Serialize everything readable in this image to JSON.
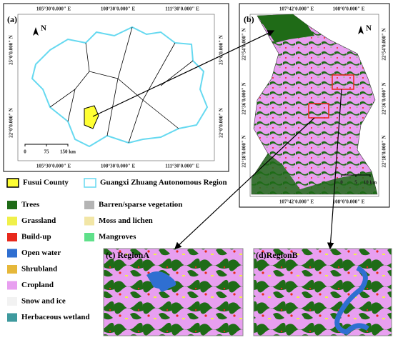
{
  "panel_a": {
    "label": "(a)",
    "north": "N",
    "top_ticks": [
      "105°30'0.000\" E",
      "108°30'0.000\" E",
      "111°30'0.000\" E"
    ],
    "bottom_ticks": [
      "105°30'0.000\" E",
      "108°30'0.000\" E",
      "111°30'0.000\" E"
    ],
    "left_ticks": [
      "25°0'0.000\" N",
      "22°0'0.000\" N"
    ],
    "right_ticks": [
      "25°0'0.000\" N",
      "22°0'0.000\" N"
    ],
    "scale": [
      "0",
      "75",
      "150 km"
    ]
  },
  "panel_b": {
    "label": "(b)",
    "north": "N",
    "top_ticks": [
      "107°42'0.000\" E",
      "108°0'0.000\" E"
    ],
    "bottom_ticks": [
      "107°42'0.000\" E",
      "108°0'0.000\" E"
    ],
    "left_ticks": [
      "22°54'0.000\" N",
      "22°36'0.000\" N",
      "22°18'0.000\" N"
    ],
    "right_ticks": [
      "22°54'0.000\" N",
      "22°36'0.000\" N",
      "22°18'0.000\" N"
    ],
    "scale": [
      "0",
      "5",
      "10 km"
    ]
  },
  "legend_regions": [
    {
      "label": "Fusui County",
      "color": "#ffff33"
    },
    {
      "label": "Guangxi Zhuang Autonomous Region",
      "color": "#66d9f0"
    }
  ],
  "legend_classes": [
    {
      "label": "Trees",
      "color": "#1f6b17"
    },
    {
      "label": "Grassland",
      "color": "#f0f04a"
    },
    {
      "label": "Build-up",
      "color": "#e8291c"
    },
    {
      "label": "Open water",
      "color": "#2f6fd1"
    },
    {
      "label": "Shrubland",
      "color": "#e6b83a"
    },
    {
      "label": "Cropland",
      "color": "#e89ff0"
    },
    {
      "label": "Snow and ice",
      "color": "#f2f2f2"
    },
    {
      "label": "Herbaceous wetland",
      "color": "#3e9a9e"
    },
    {
      "label": "Barren/sparse vegetation",
      "color": "#b4b4b4"
    },
    {
      "label": "Moss and lichen",
      "color": "#f2e6a6"
    },
    {
      "label": "Mangroves",
      "color": "#5fe08a"
    }
  ],
  "panel_c": {
    "label": "(c) RegionA"
  },
  "panel_d": {
    "label": "(d)RegionB"
  }
}
